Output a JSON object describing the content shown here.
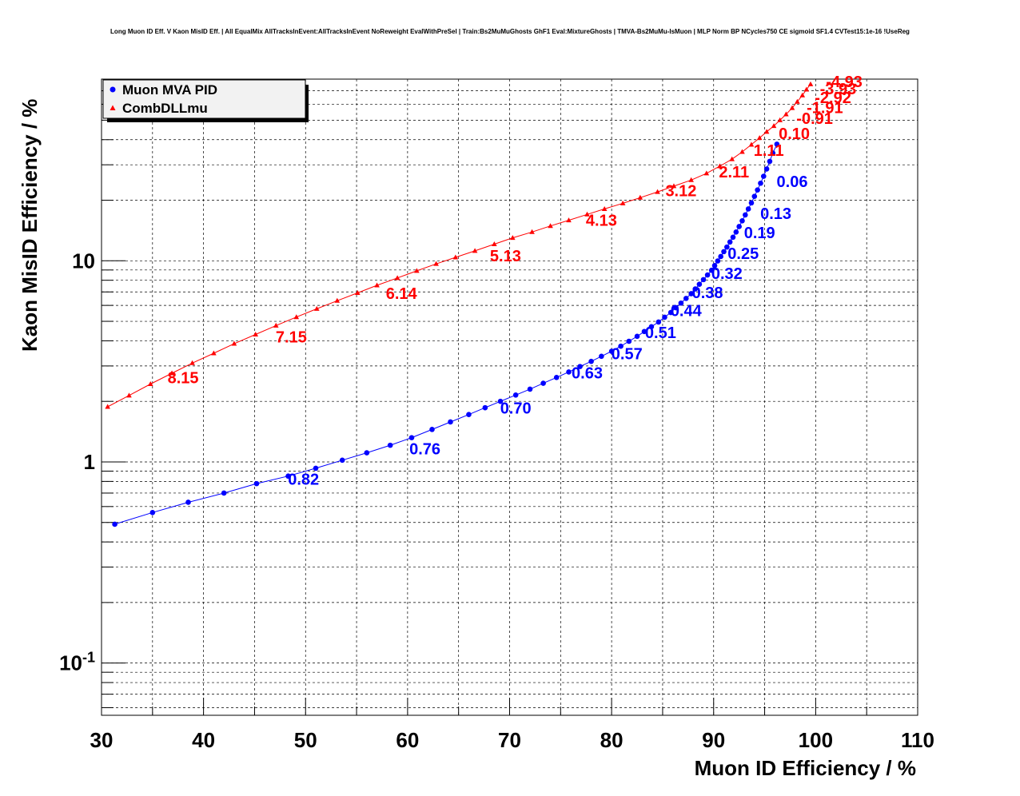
{
  "chart_data": {
    "type": "scatter",
    "title": "Long Muon ID Eff. V Kaon MisID Eff. | All EqualMix AllTracksInEvent:AllTracksInEvent NoReweight EvalWithPreSel | Train:Bs2MuMuGhosts GhF1 Eval:MixtureGhosts | TMVA-Bs2MuMu-IsMuon | MLP Norm BP NCycles750 CE sigmoid SF1.4 CVTest15:1e-16 !UseReg",
    "xlabel": "Muon ID Efficiency / %",
    "ylabel": "Kaon MisID Efficiency / %",
    "xlim": [
      30,
      110
    ],
    "ylim": [
      0.055,
      80
    ],
    "yscale": "log",
    "grid": true,
    "legend_position": "top-left",
    "x_ticks": [
      "30",
      "40",
      "50",
      "60",
      "70",
      "80",
      "90",
      "100",
      "110"
    ],
    "y_ticks": [
      {
        "value": 0.1,
        "base": "10",
        "exp": "-1"
      },
      {
        "value": 1,
        "base": "1",
        "exp": ""
      },
      {
        "value": 10,
        "base": "10",
        "exp": ""
      }
    ],
    "series": [
      {
        "name": "Muon MVA PID",
        "color": "#0000ff",
        "marker": "circle",
        "x": [
          31.3,
          35.0,
          38.5,
          42.0,
          45.2,
          48.3,
          51.0,
          53.6,
          56.0,
          58.3,
          60.4,
          62.4,
          64.2,
          66.0,
          67.6,
          69.1,
          70.6,
          72.0,
          73.3,
          74.6,
          75.8,
          76.9,
          78.0,
          79.0,
          80.0,
          80.9,
          81.7,
          82.5,
          83.2,
          83.9,
          84.6,
          85.2,
          85.8,
          86.3,
          86.8,
          87.3,
          87.8,
          88.2,
          88.6,
          89.0,
          89.4,
          89.8,
          90.1,
          90.4,
          90.7,
          91.0,
          91.3,
          91.6,
          91.9,
          92.2,
          92.5,
          92.8,
          93.1,
          93.4,
          93.7,
          94.0,
          94.3,
          94.6,
          94.9,
          95.2,
          95.5,
          95.8,
          96.2
        ],
        "y": [
          0.49,
          0.56,
          0.63,
          0.7,
          0.78,
          0.85,
          0.93,
          1.02,
          1.11,
          1.21,
          1.32,
          1.45,
          1.58,
          1.72,
          1.86,
          2.0,
          2.15,
          2.3,
          2.46,
          2.63,
          2.8,
          2.98,
          3.16,
          3.35,
          3.55,
          3.76,
          3.98,
          4.21,
          4.45,
          4.7,
          4.96,
          5.24,
          5.53,
          5.84,
          6.16,
          6.5,
          6.86,
          7.24,
          7.64,
          8.06,
          8.5,
          8.97,
          9.46,
          9.98,
          10.5,
          11.1,
          11.7,
          12.4,
          13.1,
          13.9,
          14.8,
          15.8,
          16.9,
          18.1,
          19.4,
          20.9,
          22.5,
          24.3,
          26.3,
          28.6,
          31.2,
          34.3,
          38.0
        ],
        "labels": [
          {
            "text": "0.82",
            "x": 49.8,
            "y": 0.82
          },
          {
            "text": "0.76",
            "x": 61.7,
            "y": 1.16
          },
          {
            "text": "0.70",
            "x": 70.6,
            "y": 1.85
          },
          {
            "text": "0.63",
            "x": 77.6,
            "y": 2.77
          },
          {
            "text": "0.57",
            "x": 81.5,
            "y": 3.45
          },
          {
            "text": "0.51",
            "x": 84.8,
            "y": 4.4
          },
          {
            "text": "0.44",
            "x": 87.3,
            "y": 5.65
          },
          {
            "text": "0.38",
            "x": 89.4,
            "y": 6.95
          },
          {
            "text": "0.32",
            "x": 91.3,
            "y": 8.65
          },
          {
            "text": "0.25",
            "x": 92.9,
            "y": 10.9
          },
          {
            "text": "0.19",
            "x": 94.5,
            "y": 13.8
          },
          {
            "text": "0.13",
            "x": 96.1,
            "y": 17.2
          },
          {
            "text": "0.06",
            "x": 97.7,
            "y": 24.8
          }
        ]
      },
      {
        "name": "CombDLLmu",
        "color": "#ff0000",
        "marker": "triangle",
        "x": [
          30.6,
          32.7,
          34.8,
          36.9,
          38.9,
          41.0,
          43.0,
          45.1,
          47.1,
          49.1,
          51.1,
          53.1,
          55.1,
          57.0,
          59.0,
          60.9,
          62.8,
          64.7,
          66.6,
          68.5,
          70.3,
          72.2,
          74.0,
          75.8,
          77.6,
          79.3,
          81.1,
          82.8,
          84.5,
          86.1,
          87.8,
          89.3,
          90.6,
          91.8,
          92.8,
          93.7,
          94.5,
          95.2,
          95.9,
          96.5,
          97.1,
          97.7,
          98.2,
          98.7,
          99.1,
          99.5
        ],
        "y": [
          1.88,
          2.14,
          2.44,
          2.76,
          3.1,
          3.47,
          3.87,
          4.3,
          4.76,
          5.25,
          5.77,
          6.33,
          6.92,
          7.55,
          8.21,
          8.91,
          9.65,
          10.4,
          11.2,
          12.1,
          13.0,
          13.9,
          14.9,
          15.9,
          17.0,
          18.1,
          19.3,
          20.6,
          22.0,
          23.5,
          25.2,
          27.2,
          29.5,
          32.0,
          34.8,
          37.8,
          40.8,
          43.8,
          46.8,
          50.0,
          53.5,
          57.5,
          61.8,
          66.5,
          71.0,
          75.5
        ],
        "labels": [
          {
            "text": "8.15",
            "x": 38.0,
            "y": 2.62
          },
          {
            "text": "7.15",
            "x": 48.6,
            "y": 4.18
          },
          {
            "text": "6.14",
            "x": 59.4,
            "y": 6.9
          },
          {
            "text": "5.13",
            "x": 69.6,
            "y": 10.6
          },
          {
            "text": "4.13",
            "x": 79.0,
            "y": 15.9
          },
          {
            "text": "3.12",
            "x": 86.8,
            "y": 22.3
          },
          {
            "text": "2.11",
            "x": 92.0,
            "y": 27.7
          },
          {
            "text": "1.11",
            "x": 95.4,
            "y": 35.5
          },
          {
            "text": "0.10",
            "x": 97.9,
            "y": 43.0
          },
          {
            "text": "-0.91",
            "x": 99.9,
            "y": 51.0
          },
          {
            "text": "-1.91",
            "x": 100.9,
            "y": 57.8
          },
          {
            "text": "-2.92",
            "x": 101.7,
            "y": 64.8
          },
          {
            "text": "-3.93",
            "x": 102.2,
            "y": 71.7
          },
          {
            "text": "-4.93",
            "x": 102.8,
            "y": 78.0
          }
        ]
      }
    ]
  }
}
